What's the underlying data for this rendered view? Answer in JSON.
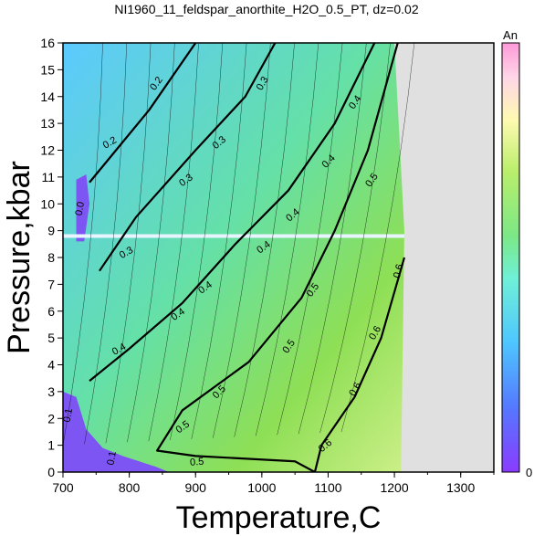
{
  "chart_data": {
    "type": "contour",
    "title": "NI1960_11_feldspar_anorthite_H2O_0.5_PT, dz=0.02",
    "xlabel": "Temperature,C",
    "ylabel": "Pressure,kbar",
    "xlim": [
      700,
      1350
    ],
    "ylim": [
      0,
      16
    ],
    "xticks": [
      700,
      800,
      900,
      1000,
      1100,
      1200,
      1300
    ],
    "yticks": [
      0,
      1,
      2,
      3,
      4,
      5,
      6,
      7,
      8,
      9,
      10,
      11,
      12,
      13,
      14,
      15,
      16
    ],
    "colorbar": {
      "label": "An",
      "min_label": "0",
      "range": [
        0,
        1
      ]
    },
    "no_data_color": "#e0e0e0",
    "data_boundary": [
      [
        750,
        16
      ],
      [
        1200,
        16
      ],
      [
        1215,
        9
      ],
      [
        1210,
        0
      ],
      [
        700,
        0
      ],
      [
        700,
        16
      ]
    ],
    "major_contours": [
      {
        "level": "0.2",
        "points": [
          [
            900,
            16
          ],
          [
            830,
            13.5
          ],
          [
            780,
            12
          ],
          [
            740,
            10.8
          ]
        ],
        "labels": [
          {
            "x": 840,
            "y": 14.5,
            "angle": -55
          },
          {
            "x": 770,
            "y": 12.3,
            "angle": -30
          }
        ]
      },
      {
        "level": "0.3",
        "points": [
          [
            1020,
            16
          ],
          [
            975,
            14
          ],
          [
            900,
            12
          ],
          [
            810,
            9.5
          ],
          [
            755,
            7.5
          ]
        ],
        "labels": [
          {
            "x": 1000,
            "y": 14.5,
            "angle": -60
          },
          {
            "x": 935,
            "y": 12.3,
            "angle": -40
          },
          {
            "x": 885,
            "y": 10.9,
            "angle": -35
          },
          {
            "x": 795,
            "y": 8.2,
            "angle": -30
          }
        ]
      },
      {
        "level": "0.4",
        "points": [
          [
            1170,
            16
          ],
          [
            1110,
            13
          ],
          [
            1040,
            10.5
          ],
          [
            960,
            8.5
          ],
          [
            880,
            6.3
          ],
          [
            800,
            4.6
          ],
          [
            740,
            3.4
          ]
        ],
        "labels": [
          {
            "x": 1140,
            "y": 13.8,
            "angle": -55
          },
          {
            "x": 1100,
            "y": 11.6,
            "angle": -45
          },
          {
            "x": 1046,
            "y": 9.6,
            "angle": -40
          },
          {
            "x": 1002,
            "y": 8.4,
            "angle": -35
          },
          {
            "x": 914,
            "y": 6.9,
            "angle": -35
          },
          {
            "x": 873,
            "y": 5.9,
            "angle": -35
          },
          {
            "x": 784,
            "y": 4.6,
            "angle": -30
          }
        ]
      },
      {
        "level": "0.5",
        "points": [
          [
            1205,
            16
          ],
          [
            1160,
            12
          ],
          [
            1110,
            9
          ],
          [
            1060,
            6.5
          ],
          [
            980,
            4.1
          ],
          [
            880,
            2.3
          ],
          [
            842,
            0.8
          ],
          [
            900,
            0.6
          ],
          [
            1050,
            0.4
          ],
          [
            1080,
            0
          ]
        ],
        "labels": [
          {
            "x": 1165,
            "y": 10.9,
            "angle": -55
          },
          {
            "x": 1076,
            "y": 6.8,
            "angle": -55
          },
          {
            "x": 1040,
            "y": 4.7,
            "angle": -55
          },
          {
            "x": 935,
            "y": 3.0,
            "angle": -45
          },
          {
            "x": 880,
            "y": 1.7,
            "angle": -35
          },
          {
            "x": 902,
            "y": 0.4,
            "angle": -5
          }
        ]
      },
      {
        "level": "0.6",
        "points": [
          [
            1215,
            8
          ],
          [
            1180,
            5
          ],
          [
            1140,
            2.8
          ],
          [
            1090,
            1
          ],
          [
            1080,
            0
          ]
        ],
        "labels": [
          {
            "x": 1205,
            "y": 7.5,
            "angle": -75
          },
          {
            "x": 1170,
            "y": 5.2,
            "angle": -60
          },
          {
            "x": 1140,
            "y": 3.1,
            "angle": -60
          },
          {
            "x": 1095,
            "y": 1.0,
            "angle": -40
          }
        ]
      }
    ],
    "minor_contour_count": 14,
    "features": {
      "horizontal_gap_pressure": 8.8,
      "low_region_labels": [
        "0.0",
        "0.1",
        "0.1"
      ]
    }
  }
}
